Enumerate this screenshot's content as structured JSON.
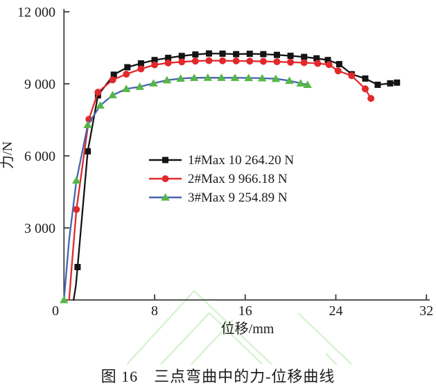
{
  "figure": {
    "caption": "图 16　三点弯曲中的力-位移曲线"
  },
  "colors": {
    "axis": "#3d3d3d",
    "text": "#1c1c1c",
    "series1": "#141414",
    "series2": "#e1282b",
    "series3_line": "#4464ad",
    "series3_marker": "#55b747",
    "watermark": "#b2e8a4"
  },
  "chart_data": {
    "type": "line",
    "title": "",
    "xlabel": "位移/mm",
    "ylabel": "力/N",
    "xlim": [
      0,
      32
    ],
    "ylim": [
      0,
      12000
    ],
    "x_ticks": [
      0,
      8,
      16,
      24,
      32
    ],
    "x_tick_labels": [
      "0",
      "8",
      "16",
      "24",
      "32"
    ],
    "y_ticks": [
      0,
      3000,
      6000,
      9000,
      12000
    ],
    "y_tick_labels": [
      "0",
      "3 000",
      "6 000",
      "9 000",
      "12 000"
    ],
    "grid": false,
    "legend_position": "inside-left-middle",
    "series": [
      {
        "name": "1#Max 10 264.20 N",
        "line_color": "#141414",
        "marker": "square",
        "marker_color": "#141414",
        "no_marker_indices": [
          0,
          1
        ],
        "points": [
          [
            0.85,
            0
          ],
          [
            1.05,
            600
          ],
          [
            1.2,
            1370
          ],
          [
            2.1,
            6190
          ],
          [
            3.0,
            8520
          ],
          [
            4.4,
            9380
          ],
          [
            5.6,
            9690
          ],
          [
            6.8,
            9850
          ],
          [
            8.0,
            9990
          ],
          [
            9.2,
            10080
          ],
          [
            10.4,
            10160
          ],
          [
            11.6,
            10220
          ],
          [
            12.8,
            10264
          ],
          [
            14.0,
            10255
          ],
          [
            15.2,
            10235
          ],
          [
            16.4,
            10250
          ],
          [
            17.6,
            10235
          ],
          [
            18.8,
            10205
          ],
          [
            20.0,
            10165
          ],
          [
            21.2,
            10120
          ],
          [
            22.3,
            10060
          ],
          [
            23.3,
            9990
          ],
          [
            24.3,
            9820
          ],
          [
            25.4,
            9400
          ],
          [
            26.6,
            9220
          ],
          [
            27.7,
            8960
          ],
          [
            28.8,
            9020
          ],
          [
            29.4,
            9050
          ]
        ]
      },
      {
        "name": "2#Max 9 966.18 N",
        "line_color": "#e1282b",
        "marker": "circle",
        "marker_color": "#e1282b",
        "no_marker_indices": [
          0,
          1
        ],
        "points": [
          [
            0.45,
            0
          ],
          [
            0.75,
            1800
          ],
          [
            1.1,
            3770
          ],
          [
            2.2,
            7520
          ],
          [
            3.0,
            8650
          ],
          [
            4.3,
            9165
          ],
          [
            5.5,
            9400
          ],
          [
            6.8,
            9620
          ],
          [
            8.0,
            9790
          ],
          [
            9.2,
            9870
          ],
          [
            10.4,
            9915
          ],
          [
            11.6,
            9945
          ],
          [
            12.8,
            9966
          ],
          [
            14.0,
            9960
          ],
          [
            15.2,
            9952
          ],
          [
            16.4,
            9945
          ],
          [
            17.6,
            9935
          ],
          [
            18.8,
            9920
          ],
          [
            20.0,
            9900
          ],
          [
            21.2,
            9880
          ],
          [
            22.4,
            9850
          ],
          [
            23.4,
            9800
          ],
          [
            24.2,
            9540
          ],
          [
            25.4,
            9340
          ],
          [
            26.6,
            8790
          ],
          [
            27.1,
            8390
          ]
        ]
      },
      {
        "name": "3#Max 9 254.89 N",
        "line_color": "#4464ad",
        "marker": "triangle",
        "marker_color": "#55b747",
        "no_marker_indices": [
          1
        ],
        "points": [
          [
            0.0,
            0
          ],
          [
            0.45,
            2500
          ],
          [
            1.1,
            4980
          ],
          [
            2.1,
            7290
          ],
          [
            3.2,
            8100
          ],
          [
            4.3,
            8530
          ],
          [
            5.5,
            8790
          ],
          [
            6.7,
            8880
          ],
          [
            7.9,
            9020
          ],
          [
            9.1,
            9150
          ],
          [
            10.3,
            9220
          ],
          [
            11.5,
            9250
          ],
          [
            12.7,
            9255
          ],
          [
            13.9,
            9252
          ],
          [
            15.1,
            9250
          ],
          [
            16.3,
            9245
          ],
          [
            17.5,
            9235
          ],
          [
            18.7,
            9210
          ],
          [
            19.9,
            9130
          ],
          [
            20.9,
            9020
          ],
          [
            21.5,
            8960
          ]
        ]
      }
    ]
  },
  "watermark_paths": [
    "M150,562 L280,420 L430,562",
    "M198,562 L302,452 L416,562",
    "M242,562 L336,462",
    "M430,452 L545,562",
    "M470,510 L520,562"
  ]
}
